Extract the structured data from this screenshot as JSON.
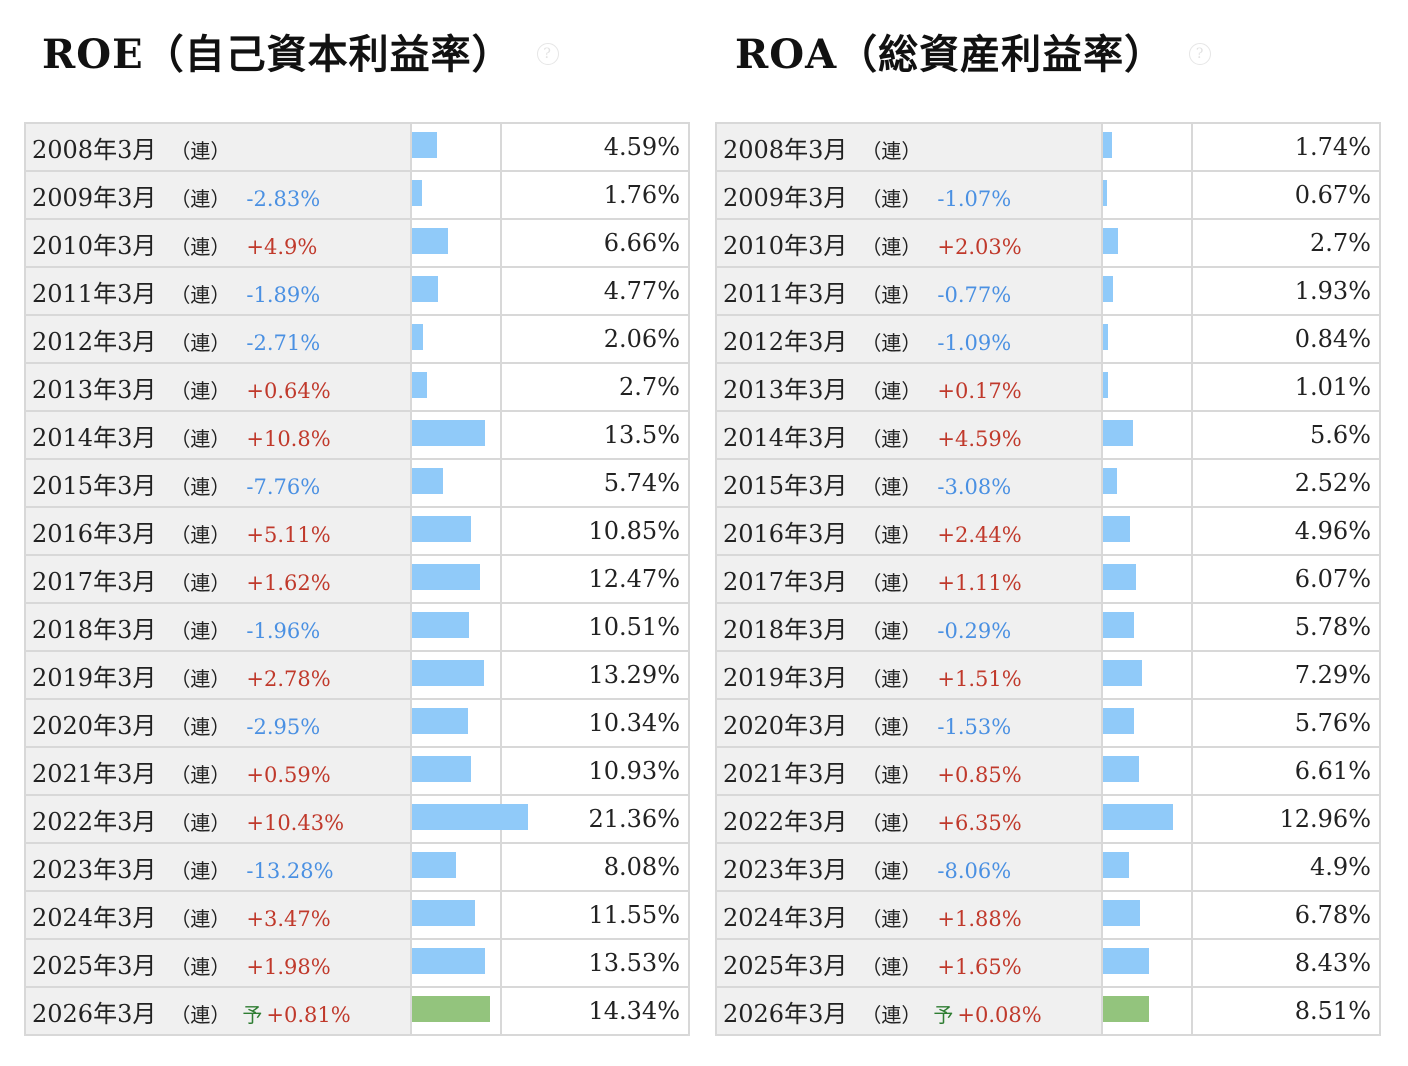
{
  "chart_data": [
    {
      "type": "table",
      "title": "ROE（自己資本利益率）",
      "help_icon": "question-circle-icon",
      "consolidated_mark": "（連）",
      "forecast_mark": "予",
      "bar_color": "#90caf9",
      "forecast_bar_color": "#93c47d",
      "rows": [
        {
          "period": "2008年3月",
          "change": "",
          "value": 4.59,
          "value_text": "4.59%"
        },
        {
          "period": "2009年3月",
          "change": "-2.83%",
          "value": 1.76,
          "value_text": "1.76%"
        },
        {
          "period": "2010年3月",
          "change": "+4.9%",
          "value": 6.66,
          "value_text": "6.66%"
        },
        {
          "period": "2011年3月",
          "change": "-1.89%",
          "value": 4.77,
          "value_text": "4.77%"
        },
        {
          "period": "2012年3月",
          "change": "-2.71%",
          "value": 2.06,
          "value_text": "2.06%"
        },
        {
          "period": "2013年3月",
          "change": "+0.64%",
          "value": 2.7,
          "value_text": "2.7%"
        },
        {
          "period": "2014年3月",
          "change": "+10.8%",
          "value": 13.5,
          "value_text": "13.5%"
        },
        {
          "period": "2015年3月",
          "change": "-7.76%",
          "value": 5.74,
          "value_text": "5.74%"
        },
        {
          "period": "2016年3月",
          "change": "+5.11%",
          "value": 10.85,
          "value_text": "10.85%"
        },
        {
          "period": "2017年3月",
          "change": "+1.62%",
          "value": 12.47,
          "value_text": "12.47%"
        },
        {
          "period": "2018年3月",
          "change": "-1.96%",
          "value": 10.51,
          "value_text": "10.51%"
        },
        {
          "period": "2019年3月",
          "change": "+2.78%",
          "value": 13.29,
          "value_text": "13.29%"
        },
        {
          "period": "2020年3月",
          "change": "-2.95%",
          "value": 10.34,
          "value_text": "10.34%"
        },
        {
          "period": "2021年3月",
          "change": "+0.59%",
          "value": 10.93,
          "value_text": "10.93%"
        },
        {
          "period": "2022年3月",
          "change": "+10.43%",
          "value": 21.36,
          "value_text": "21.36%"
        },
        {
          "period": "2023年3月",
          "change": "-13.28%",
          "value": 8.08,
          "value_text": "8.08%"
        },
        {
          "period": "2024年3月",
          "change": "+3.47%",
          "value": 11.55,
          "value_text": "11.55%"
        },
        {
          "period": "2025年3月",
          "change": "+1.98%",
          "value": 13.53,
          "value_text": "13.53%"
        },
        {
          "period": "2026年3月",
          "change": "+0.81%",
          "value": 14.34,
          "value_text": "14.34%",
          "forecast": true
        }
      ]
    },
    {
      "type": "table",
      "title": "ROA（総資産利益率）",
      "help_icon": "question-circle-icon",
      "consolidated_mark": "（連）",
      "forecast_mark": "予",
      "bar_color": "#90caf9",
      "forecast_bar_color": "#93c47d",
      "rows": [
        {
          "period": "2008年3月",
          "change": "",
          "value": 1.74,
          "value_text": "1.74%"
        },
        {
          "period": "2009年3月",
          "change": "-1.07%",
          "value": 0.67,
          "value_text": "0.67%"
        },
        {
          "period": "2010年3月",
          "change": "+2.03%",
          "value": 2.7,
          "value_text": "2.7%"
        },
        {
          "period": "2011年3月",
          "change": "-0.77%",
          "value": 1.93,
          "value_text": "1.93%"
        },
        {
          "period": "2012年3月",
          "change": "-1.09%",
          "value": 0.84,
          "value_text": "0.84%"
        },
        {
          "period": "2013年3月",
          "change": "+0.17%",
          "value": 1.01,
          "value_text": "1.01%"
        },
        {
          "period": "2014年3月",
          "change": "+4.59%",
          "value": 5.6,
          "value_text": "5.6%"
        },
        {
          "period": "2015年3月",
          "change": "-3.08%",
          "value": 2.52,
          "value_text": "2.52%"
        },
        {
          "period": "2016年3月",
          "change": "+2.44%",
          "value": 4.96,
          "value_text": "4.96%"
        },
        {
          "period": "2017年3月",
          "change": "+1.11%",
          "value": 6.07,
          "value_text": "6.07%"
        },
        {
          "period": "2018年3月",
          "change": "-0.29%",
          "value": 5.78,
          "value_text": "5.78%"
        },
        {
          "period": "2019年3月",
          "change": "+1.51%",
          "value": 7.29,
          "value_text": "7.29%"
        },
        {
          "period": "2020年3月",
          "change": "-1.53%",
          "value": 5.76,
          "value_text": "5.76%"
        },
        {
          "period": "2021年3月",
          "change": "+0.85%",
          "value": 6.61,
          "value_text": "6.61%"
        },
        {
          "period": "2022年3月",
          "change": "+6.35%",
          "value": 12.96,
          "value_text": "12.96%"
        },
        {
          "period": "2023年3月",
          "change": "-8.06%",
          "value": 4.9,
          "value_text": "4.9%"
        },
        {
          "period": "2024年3月",
          "change": "+1.88%",
          "value": 6.78,
          "value_text": "6.78%"
        },
        {
          "period": "2025年3月",
          "change": "+1.65%",
          "value": 8.43,
          "value_text": "8.43%"
        },
        {
          "period": "2026年3月",
          "change": "+0.08%",
          "value": 8.51,
          "value_text": "8.51%",
          "forecast": true
        }
      ]
    }
  ]
}
